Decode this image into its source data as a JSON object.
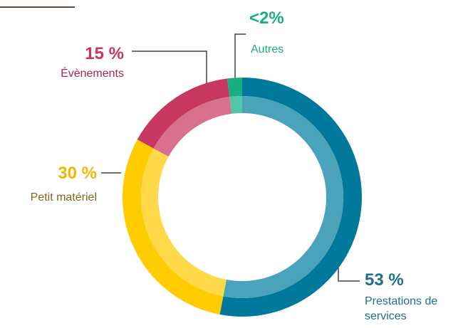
{
  "chart_data": {
    "type": "donut",
    "categories": [
      "Prestations de services",
      "Petit matériel",
      "Évènements",
      "Autres"
    ],
    "values": [
      53,
      30,
      15,
      2
    ],
    "value_labels": [
      "53 %",
      "30 %",
      "15 %",
      "<2%"
    ],
    "colors": [
      "#00799c",
      "#ffcc00",
      "#c8375f",
      "#1aae84"
    ],
    "inner_colors": [
      "#4aa3bb",
      "#ffd94a",
      "#d9718e",
      "#4fc9a5"
    ],
    "label_colors": [
      "#1f6f8b",
      "#7d6a1a",
      "#a52a4d",
      "#1aae84"
    ],
    "value_label_colors": [
      "#1f6f8b",
      "#f2b705",
      "#c8375f",
      "#1aae84"
    ]
  }
}
